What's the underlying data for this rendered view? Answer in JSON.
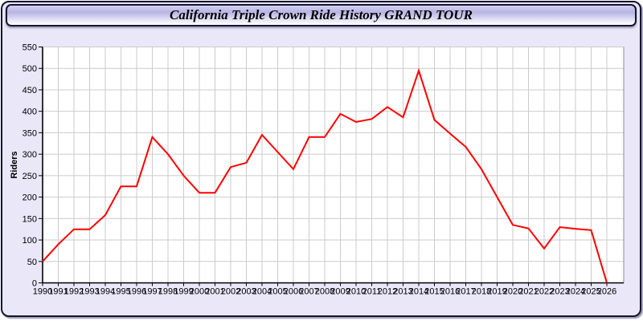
{
  "window": {
    "title": "California Triple Crown Ride History GRAND TOUR"
  },
  "chart_data": {
    "type": "line",
    "title": "California Triple Crown Ride History GRAND TOUR",
    "ylabel": "Riders",
    "xlabel": "",
    "x": [
      1990,
      1991,
      1992,
      1993,
      1994,
      1995,
      1996,
      1997,
      1998,
      1999,
      2000,
      2001,
      2002,
      2003,
      2004,
      2005,
      2006,
      2007,
      2008,
      2009,
      2010,
      2011,
      2012,
      2013,
      2014,
      2015,
      2016,
      2017,
      2018,
      2019,
      2020,
      2021,
      2022,
      2023,
      2024,
      2025,
      2026
    ],
    "series": [
      {
        "name": "Riders",
        "color": "#ff0000",
        "values": [
          50,
          90,
          125,
          125,
          158,
          225,
          225,
          340,
          300,
          250,
          210,
          210,
          270,
          280,
          345,
          305,
          265,
          340,
          340,
          394,
          375,
          382,
          410,
          386,
          495,
          380,
          348,
          317,
          265,
          200,
          135,
          127,
          80,
          130,
          126,
          123,
          0
        ]
      }
    ],
    "ylim": [
      0,
      550
    ],
    "yticks": [
      0,
      50,
      100,
      150,
      200,
      250,
      300,
      350,
      400,
      450,
      500,
      550
    ],
    "grid": true,
    "legend_position": "none",
    "colors": {
      "line": "#ff0000",
      "grid": "#cbcbcb",
      "axis": "#000000",
      "tick_label": "#000000",
      "plot_background": "#ffffff",
      "page_background": "#e9e7f8",
      "frame_border": "#15152e"
    }
  }
}
